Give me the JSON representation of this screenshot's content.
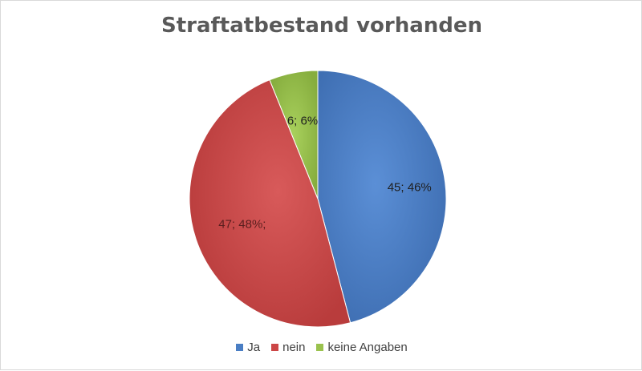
{
  "chart_data": {
    "type": "pie",
    "title": "Straftatbestand vorhanden",
    "categories": [
      "Ja",
      "nein",
      "keine Angaben"
    ],
    "values": [
      45,
      47,
      6
    ],
    "percentages": [
      46,
      48,
      6
    ],
    "data_labels": [
      "45; 46%",
      "47; 48%;",
      "6; 6%"
    ],
    "colors": [
      "#4a7ec4",
      "#cc4646",
      "#9ac24e"
    ],
    "legend_position": "bottom"
  }
}
